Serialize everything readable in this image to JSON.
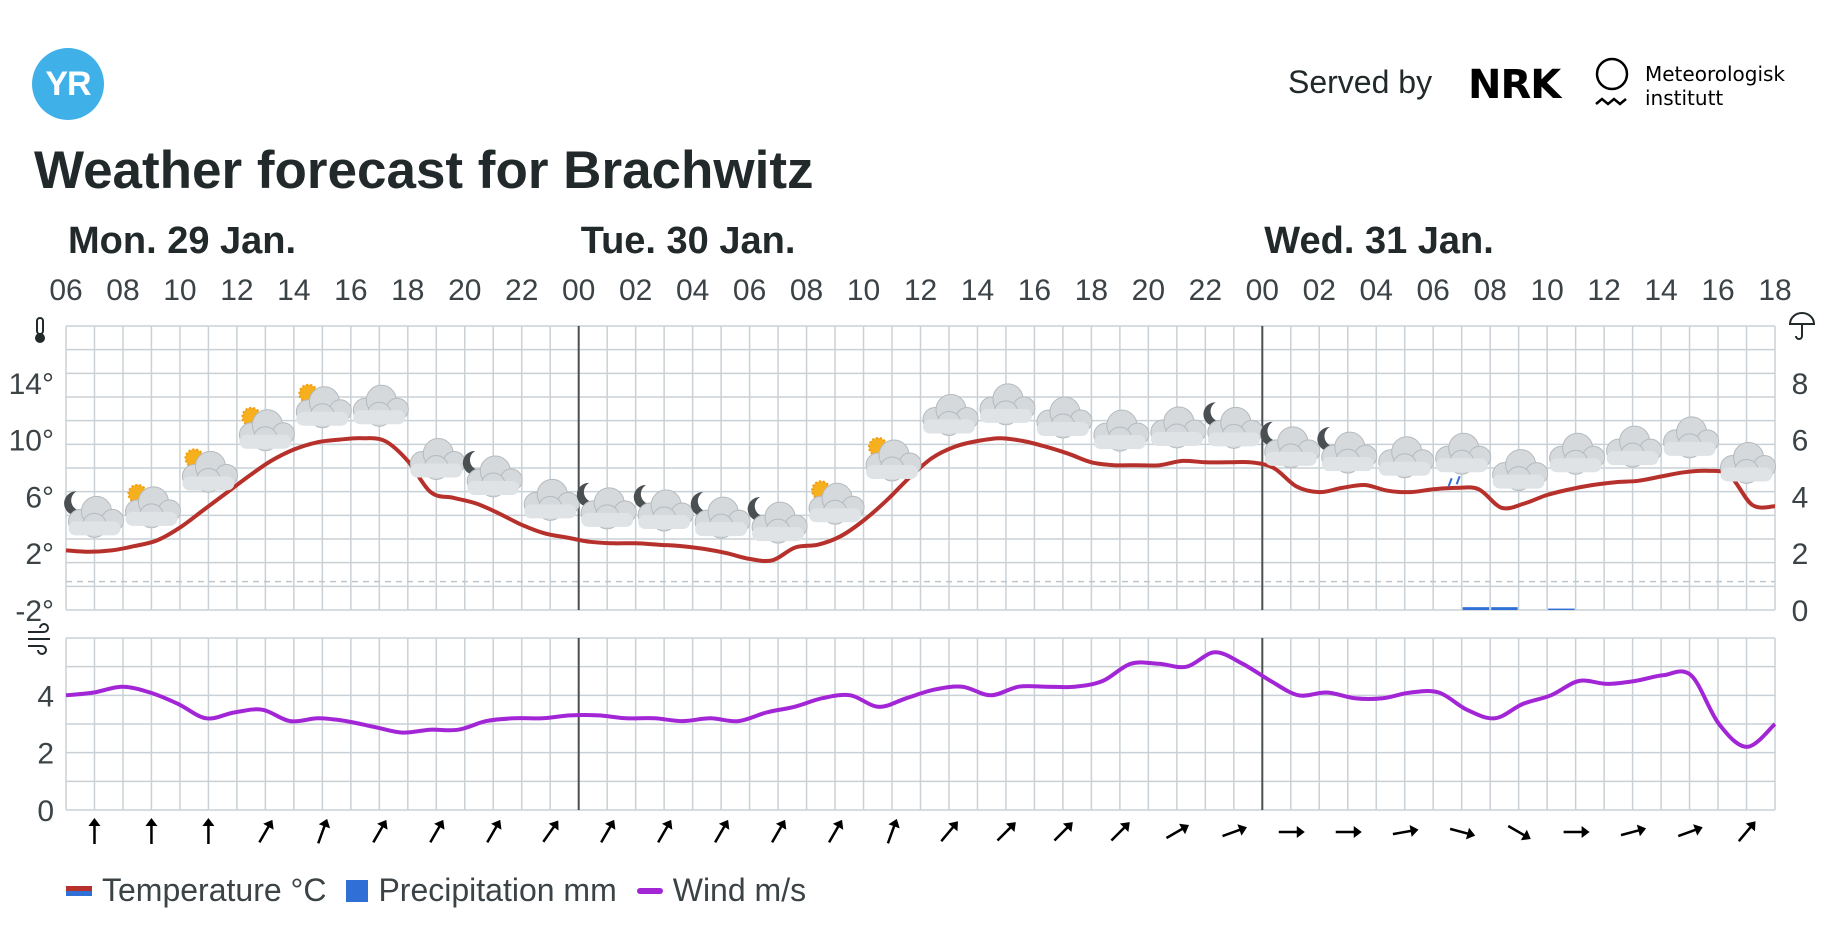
{
  "header": {
    "logo_text": "YR",
    "served_by": "Served by",
    "nrk_logo": "NRK",
    "met_name": "Meteorologisk\ninstitutt",
    "title": "Weather forecast for Brachwitz"
  },
  "legend": {
    "temperature": "Temperature °C",
    "precipitation": "Precipitation mm",
    "wind": "Wind m/s"
  },
  "chart_data": {
    "type": "line",
    "days": [
      {
        "label": "Mon. 29 Jan.",
        "hour_index": 0
      },
      {
        "label": "Tue. 30 Jan.",
        "hour_index": 18
      },
      {
        "label": "Wed. 31 Jan.",
        "hour_index": 42
      }
    ],
    "hour_labels": [
      "06",
      "08",
      "10",
      "12",
      "14",
      "16",
      "18",
      "20",
      "22",
      "00",
      "02",
      "04",
      "06",
      "08",
      "10",
      "12",
      "14",
      "16",
      "18",
      "20",
      "22",
      "00",
      "02",
      "04",
      "06",
      "08",
      "10",
      "12",
      "14",
      "16",
      "18"
    ],
    "temperature": {
      "ylim": [
        -2,
        18
      ],
      "ticks": [
        {
          "v": -2,
          "label": "-2°"
        },
        {
          "v": 2,
          "label": "2°"
        },
        {
          "v": 6,
          "label": "6°"
        },
        {
          "v": 10,
          "label": "10°"
        },
        {
          "v": 14,
          "label": "14°"
        }
      ],
      "values": [
        2.2,
        2.1,
        2.2,
        2.5,
        2.9,
        3.8,
        5.0,
        6.2,
        7.4,
        8.5,
        9.3,
        9.8,
        10.0,
        10.1,
        9.9,
        8.5,
        6.3,
        5.9,
        5.5,
        4.8,
        4.0,
        3.4,
        3.1,
        2.8,
        2.7,
        2.7,
        2.6,
        2.5,
        2.3,
        2.0,
        1.6,
        1.5,
        2.4,
        2.6,
        3.2,
        4.3,
        5.7,
        7.3,
        8.7,
        9.5,
        9.9,
        10.1,
        9.9,
        9.5,
        9.0,
        8.4,
        8.2,
        8.2,
        8.2,
        8.5,
        8.4,
        8.4,
        8.4,
        8.0,
        6.7,
        6.3,
        6.6,
        6.8,
        6.4,
        6.3,
        6.5,
        6.6,
        6.5,
        5.2,
        5.5,
        6.1,
        6.5,
        6.8,
        7.0,
        7.1,
        7.4,
        7.7,
        7.8,
        7.5,
        5.4,
        5.3
      ]
    },
    "precipitation": {
      "ylim": [
        0,
        10
      ],
      "ticks": [
        {
          "v": 0,
          "label": "0"
        },
        {
          "v": 2,
          "label": "2"
        },
        {
          "v": 4,
          "label": "4"
        },
        {
          "v": 6,
          "label": "6"
        },
        {
          "v": 8,
          "label": "8"
        }
      ],
      "bars": [
        {
          "hour_index": 49,
          "value": 0.1
        },
        {
          "hour_index": 50,
          "value": 0.1
        },
        {
          "hour_index": 52,
          "value": 0.05
        }
      ]
    },
    "wind": {
      "ylim": [
        0,
        6
      ],
      "ticks": [
        {
          "v": 0,
          "label": "0"
        },
        {
          "v": 2,
          "label": "2"
        },
        {
          "v": 4,
          "label": "4"
        }
      ],
      "values": [
        4.0,
        4.1,
        4.3,
        4.1,
        3.7,
        3.2,
        3.4,
        3.5,
        3.1,
        3.2,
        3.1,
        2.9,
        2.7,
        2.8,
        2.8,
        3.1,
        3.2,
        3.2,
        3.3,
        3.3,
        3.2,
        3.2,
        3.1,
        3.2,
        3.1,
        3.4,
        3.6,
        3.9,
        4.0,
        3.6,
        3.9,
        4.2,
        4.3,
        4.0,
        4.3,
        4.3,
        4.3,
        4.5,
        5.1,
        5.1,
        5.0,
        5.5,
        5.1,
        4.5,
        4.0,
        4.1,
        3.9,
        3.9,
        4.1,
        4.1,
        3.5,
        3.2,
        3.7,
        4.0,
        4.5,
        4.4,
        4.5,
        4.7,
        4.7,
        3.0,
        2.2,
        3.0
      ]
    },
    "symbols": [
      {
        "hour_index": 1,
        "icon": "partly-cloudy-night-icon"
      },
      {
        "hour_index": 3,
        "icon": "partly-cloudy-day-icon"
      },
      {
        "hour_index": 5,
        "icon": "partly-cloudy-day-icon"
      },
      {
        "hour_index": 7,
        "icon": "partly-cloudy-day-icon"
      },
      {
        "hour_index": 9,
        "icon": "partly-cloudy-day-icon"
      },
      {
        "hour_index": 11,
        "icon": "cloudy-icon"
      },
      {
        "hour_index": 13,
        "icon": "cloudy-icon"
      },
      {
        "hour_index": 15,
        "icon": "partly-cloudy-night-icon"
      },
      {
        "hour_index": 17,
        "icon": "cloudy-icon"
      },
      {
        "hour_index": 19,
        "icon": "partly-cloudy-night-icon"
      },
      {
        "hour_index": 21,
        "icon": "partly-cloudy-night-icon"
      },
      {
        "hour_index": 23,
        "icon": "partly-cloudy-night-icon"
      },
      {
        "hour_index": 25,
        "icon": "partly-cloudy-night-icon"
      },
      {
        "hour_index": 27,
        "icon": "partly-cloudy-day-icon"
      },
      {
        "hour_index": 29,
        "icon": "partly-cloudy-day-icon"
      },
      {
        "hour_index": 31,
        "icon": "cloudy-icon"
      },
      {
        "hour_index": 33,
        "icon": "cloudy-icon"
      },
      {
        "hour_index": 35,
        "icon": "cloudy-icon"
      },
      {
        "hour_index": 37,
        "icon": "cloudy-icon"
      },
      {
        "hour_index": 39,
        "icon": "cloudy-icon"
      },
      {
        "hour_index": 41,
        "icon": "partly-cloudy-night-icon"
      },
      {
        "hour_index": 43,
        "icon": "partly-cloudy-night-icon"
      },
      {
        "hour_index": 45,
        "icon": "partly-cloudy-night-icon"
      },
      {
        "hour_index": 47,
        "icon": "cloudy-icon"
      },
      {
        "hour_index": 49,
        "icon": "light-rain-icon"
      },
      {
        "hour_index": 51,
        "icon": "cloudy-icon"
      },
      {
        "hour_index": 53,
        "icon": "cloudy-icon"
      },
      {
        "hour_index": 55,
        "icon": "cloudy-icon"
      },
      {
        "hour_index": 57,
        "icon": "cloudy-icon"
      },
      {
        "hour_index": 59,
        "icon": "cloudy-icon"
      }
    ],
    "wind_direction_deg": [
      180,
      180,
      180,
      210,
      200,
      210,
      210,
      210,
      215,
      210,
      210,
      210,
      210,
      210,
      200,
      220,
      225,
      225,
      225,
      240,
      250,
      270,
      270,
      260,
      285,
      300,
      270,
      255,
      250,
      220
    ],
    "icons": {
      "temperature_axis": "thermometer-icon",
      "precipitation_axis": "umbrella-icon",
      "wind_axis": "wind-icon"
    },
    "colors": {
      "temperature": "#b7312c",
      "precipitation": "#2f6fd6",
      "wind": "#a326d6",
      "grid": "#c9d1d6"
    }
  }
}
